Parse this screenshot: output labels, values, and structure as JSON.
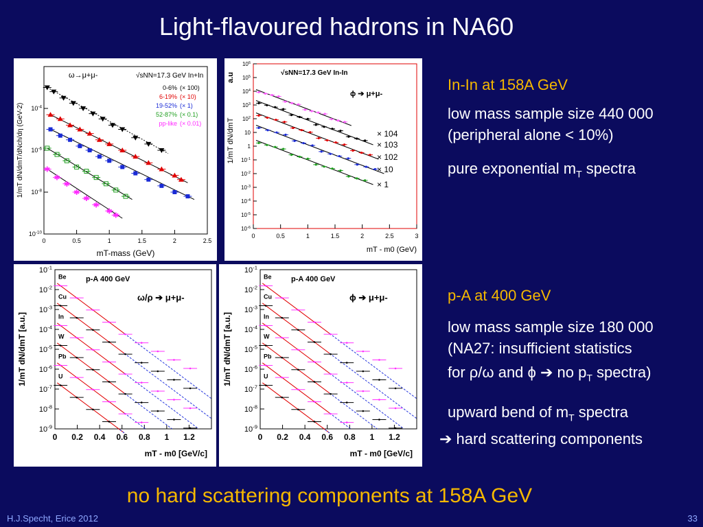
{
  "slide": {
    "title": "Light-flavoured hadrons in NA60",
    "bottom_note": "no hard scattering components at 158A GeV",
    "footer_left": "H.J.Specht, Erice 2012",
    "page_number": "33"
  },
  "text_blocks": {
    "inin_heading": "In-In at 158A GeV",
    "inin_line1": "low mass sample size 440 000",
    "inin_line2": "(peripheral alone < 10%)",
    "inin_line3_main": "pure exponential m",
    "inin_line3_sub": "T",
    "inin_line3_tail": " spectra",
    "pa_heading": "p-A at 400 GeV",
    "pa_line1": "low mass sample size 180 000",
    "pa_line2": "(NA27: insufficient statistics",
    "pa_line3_a": "for ρ/ω and ϕ ",
    "pa_line3_arrow": "➔",
    "pa_line3_b": " no p",
    "pa_line3_sub": "T",
    "pa_line3_c": " spectra)",
    "bend_main": "upward bend of m",
    "bend_sub": "T",
    "bend_tail": " spectra",
    "hard_arrow": "➔",
    "hard_text": " hard scattering components"
  },
  "chart_data": [
    {
      "type": "scatter",
      "name": "omega-inin",
      "process": "ω→μ+μ-",
      "energy_label": "√sNN=17.3 GeV In+In",
      "xlabel": "mT-mass (GeV)",
      "ylabel": "1/mT dN/dmT/dNch/dη (GeV-2)",
      "xlim": [
        0,
        2.5
      ],
      "ylim_log10": [
        -10,
        -2
      ],
      "xticks": [
        "0",
        "0.5",
        "1",
        "1.5",
        "2",
        "2.5"
      ],
      "yticks": [
        "10-10",
        "10-8",
        "10-6",
        "10-4"
      ],
      "series": [
        {
          "name": "0-6%",
          "scale": "(× 100)",
          "color": "#000000",
          "marker": "triangle-down",
          "x": [
            0.05,
            0.15,
            0.3,
            0.45,
            0.6,
            0.75,
            0.9,
            1.05,
            1.2,
            1.4,
            1.6,
            1.8
          ],
          "y_log10": [
            -3.0,
            -3.2,
            -3.5,
            -3.75,
            -4.0,
            -4.25,
            -4.5,
            -4.8,
            -5.0,
            -5.4,
            -5.7,
            -6.0
          ]
        },
        {
          "name": "6-19%",
          "scale": "(× 10)",
          "color": "#e00000",
          "marker": "triangle-up",
          "x": [
            0.1,
            0.25,
            0.4,
            0.55,
            0.7,
            0.85,
            1.0,
            1.2,
            1.4,
            1.6,
            1.8,
            2.0,
            2.1
          ],
          "y_log10": [
            -4.3,
            -4.5,
            -4.8,
            -5.0,
            -5.2,
            -5.5,
            -5.7,
            -6.0,
            -6.3,
            -6.6,
            -6.9,
            -7.2,
            -7.4
          ]
        },
        {
          "name": "19-52%",
          "scale": "(× 1)",
          "color": "#1a2bd6",
          "marker": "square",
          "x": [
            0.1,
            0.25,
            0.4,
            0.55,
            0.7,
            0.85,
            1.0,
            1.2,
            1.4,
            1.6,
            1.8,
            2.0,
            2.2
          ],
          "y_log10": [
            -5.0,
            -5.3,
            -5.5,
            -5.8,
            -6.0,
            -6.3,
            -6.5,
            -6.8,
            -7.1,
            -7.4,
            -7.7,
            -8.0,
            -8.2
          ]
        },
        {
          "name": "52-87%",
          "scale": "(× 0.1)",
          "color": "#1e9e1e",
          "marker": "open-square",
          "x": [
            0.05,
            0.2,
            0.35,
            0.5,
            0.65,
            0.8,
            0.95,
            1.1,
            1.25
          ],
          "y_log10": [
            -5.9,
            -6.2,
            -6.5,
            -6.8,
            -7.0,
            -7.3,
            -7.6,
            -7.9,
            -8.2
          ]
        },
        {
          "name": "pp-like",
          "scale": "(× 0.01)",
          "color": "#ff2aff",
          "marker": "star",
          "x": [
            0.05,
            0.2,
            0.35,
            0.5,
            0.65,
            0.8,
            1.0,
            1.1
          ],
          "y_log10": [
            -6.9,
            -7.3,
            -7.6,
            -8.0,
            -8.3,
            -8.6,
            -8.9,
            -9.1
          ]
        }
      ]
    },
    {
      "type": "scatter",
      "name": "phi-inin",
      "process": "ϕ ➔ μ+μ-",
      "energy_label": "√sNN=17.3 GeV In-In",
      "xlabel": "mT - m0 (GeV)",
      "ylabel": "1/mT dN/dmT",
      "ylabel_extra": "a.u",
      "xlim": [
        0,
        3
      ],
      "ylim_log10": [
        -6,
        6
      ],
      "xticks": [
        "0",
        "0.5",
        "1",
        "1.5",
        "2",
        "2.5",
        "3"
      ],
      "yticks": [
        "10-6",
        "10-5",
        "10-4",
        "10-3",
        "10-2",
        "10-1",
        "1",
        "10",
        "102",
        "103",
        "104",
        "105",
        "106"
      ],
      "scale_labels": [
        "× 104",
        "× 103",
        "× 102",
        "× 10",
        "× 1"
      ],
      "series": [
        {
          "name": "× 104",
          "color": "#ff60ff",
          "slope": -1.5,
          "y0": 4.2,
          "xmax": 1.8
        },
        {
          "name": "× 103",
          "color": "#000000",
          "slope": -1.5,
          "y0": 3.4,
          "xmax": 2.2
        },
        {
          "name": "× 102",
          "color": "#e00000",
          "slope": -1.5,
          "y0": 2.5,
          "xmax": 2.3
        },
        {
          "name": "× 10",
          "color": "#1a2bd6",
          "slope": -1.5,
          "y0": 1.6,
          "xmax": 2.4
        },
        {
          "name": "× 1",
          "color": "#1e9e1e",
          "slope": -1.5,
          "y0": 0.5,
          "xmax": 2.2
        }
      ]
    },
    {
      "type": "scatter",
      "name": "omega-rho-pa",
      "process": "ω/ρ ➔ μ+μ-",
      "energy_label": "p-A 400 GeV",
      "xlabel": "mT - m0 [GeV/c]",
      "ylabel": "1/mT dN/dmT [a.u.]",
      "xlim": [
        0,
        1.4
      ],
      "ylim_log10": [
        -9,
        -1
      ],
      "xticks": [
        "0",
        "0.2",
        "0.4",
        "0.6",
        "0.8",
        "1",
        "1.2"
      ],
      "yticks": [
        "10-1",
        "10-2",
        "10-3",
        "10-4",
        "10-5",
        "10-6",
        "10-7",
        "10-8",
        "10-9"
      ],
      "targets": [
        "Be",
        "Cu",
        "In",
        "W",
        "Pb",
        "U"
      ],
      "series": [
        {
          "name": "Be",
          "color": "#ff30ff",
          "y0": -1.6
        },
        {
          "name": "Cu",
          "color": "#000000",
          "y0": -2.6
        },
        {
          "name": "In",
          "color": "#ff30ff",
          "y0": -3.6
        },
        {
          "name": "W",
          "color": "#000000",
          "y0": -4.6
        },
        {
          "name": "Pb",
          "color": "#ff30ff",
          "y0": -5.6
        },
        {
          "name": "U",
          "color": "#000000",
          "y0": -6.6
        }
      ]
    },
    {
      "type": "scatter",
      "name": "phi-pa",
      "process": "ϕ ➔ μ+μ-",
      "energy_label": "p-A 400 GeV",
      "xlabel": "mT - m0 [GeV/c]",
      "ylabel": "1/mT dN/dmT [a.u.]",
      "xlim": [
        0,
        1.4
      ],
      "ylim_log10": [
        -9,
        -1
      ],
      "xticks": [
        "0",
        "0.2",
        "0.4",
        "0.6",
        "0.8",
        "1",
        "1.2"
      ],
      "yticks": [
        "10-1",
        "10-2",
        "10-3",
        "10-4",
        "10-5",
        "10-6",
        "10-7",
        "10-8",
        "10-9"
      ],
      "targets": [
        "Be",
        "Cu",
        "In",
        "W",
        "Pb",
        "U"
      ],
      "series": [
        {
          "name": "Be",
          "color": "#ff30ff",
          "y0": -1.6
        },
        {
          "name": "Cu",
          "color": "#000000",
          "y0": -2.6
        },
        {
          "name": "In",
          "color": "#ff30ff",
          "y0": -3.6
        },
        {
          "name": "W",
          "color": "#000000",
          "y0": -4.6
        },
        {
          "name": "Pb",
          "color": "#ff30ff",
          "y0": -5.6
        },
        {
          "name": "U",
          "color": "#000000",
          "y0": -6.6
        }
      ]
    }
  ]
}
